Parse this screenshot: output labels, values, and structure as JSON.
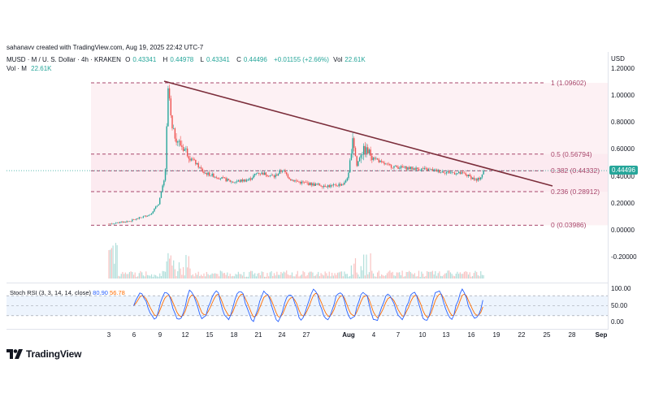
{
  "credit": "sahanavv created with TradingView.com, Aug 19, 2025 22:42 UTC-7",
  "legend": {
    "symbol": "MUSD · M / U. S. Dollar · 4h · KRAKEN",
    "open_label": "O",
    "open": "0.43341",
    "high_label": "H",
    "high": "0.44978",
    "low_label": "L",
    "low": "0.43341",
    "close_label": "C",
    "close": "0.44496",
    "change": "+0.01155 (+2.66%)",
    "vol_label": "Vol",
    "vol": "22.61K",
    "vol_row_label": "Vol · M",
    "vol_row_value": "22.61K"
  },
  "currency": "USD",
  "current_price": "0.44496",
  "colors": {
    "up": "#26a69a",
    "down": "#ef5350",
    "trendline": "#7b2d3a",
    "fib": "#a8476b",
    "stoch_k": "#2962ff",
    "stoch_d": "#ff6d00"
  },
  "price_axis": [
    "1.20000",
    "1.00000",
    "0.80000",
    "0.60000",
    "0.40000",
    "0.20000",
    "0.00000",
    "-0.20000"
  ],
  "fib_levels": [
    {
      "label": "1 (1.09602)",
      "value": 1.09602
    },
    {
      "label": "0.5 (0.56794)",
      "value": 0.56794
    },
    {
      "label": "0.382 (0.44332)",
      "value": 0.44332
    },
    {
      "label": "0.236 (0.28912)",
      "value": 0.28912
    },
    {
      "label": "0 (0.03986)",
      "value": 0.03986
    }
  ],
  "stoch": {
    "label_prefix": "Stoch RSI (3, 3, 14, 14, close)",
    "k": "80.90",
    "d": "56.78",
    "axis": [
      "100.00",
      "50.00",
      "0.00"
    ]
  },
  "x_ticks": [
    {
      "label": "3",
      "bold": false
    },
    {
      "label": "6",
      "bold": false
    },
    {
      "label": "9",
      "bold": false
    },
    {
      "label": "12",
      "bold": false
    },
    {
      "label": "15",
      "bold": false
    },
    {
      "label": "18",
      "bold": false
    },
    {
      "label": "21",
      "bold": false
    },
    {
      "label": "24",
      "bold": false
    },
    {
      "label": "27",
      "bold": false
    },
    {
      "label": "Aug",
      "bold": true
    },
    {
      "label": "4",
      "bold": false
    },
    {
      "label": "7",
      "bold": false
    },
    {
      "label": "10",
      "bold": false
    },
    {
      "label": "13",
      "bold": false
    },
    {
      "label": "16",
      "bold": false
    },
    {
      "label": "19",
      "bold": false
    },
    {
      "label": "22",
      "bold": false
    },
    {
      "label": "25",
      "bold": false
    },
    {
      "label": "28",
      "bold": false
    },
    {
      "label": "Sep",
      "bold": true
    }
  ],
  "logo_text": "TradingView",
  "logo_icon": "tradingview-logo-icon",
  "chart_data": {
    "type": "line",
    "x": [
      "Jul 3",
      "Jul 6",
      "Jul 9",
      "Jul 10",
      "Jul 12",
      "Jul 15",
      "Jul 18",
      "Jul 21",
      "Jul 24",
      "Jul 27",
      "Aug 1",
      "Aug 2",
      "Aug 4",
      "Aug 7",
      "Aug 10",
      "Aug 13",
      "Aug 16",
      "Aug 18",
      "Aug 19"
    ],
    "series": [
      {
        "values": [
          0.05,
          0.08,
          0.4,
          1.09,
          0.6,
          0.4,
          0.36,
          0.43,
          0.38,
          0.33,
          0.38,
          0.7,
          0.58,
          0.48,
          0.46,
          0.43,
          0.42,
          0.38,
          0.445
        ]
      }
    ],
    "ylim": [
      -0.3,
      1.25
    ],
    "xlabel": "",
    "ylabel": "",
    "grid": false
  }
}
